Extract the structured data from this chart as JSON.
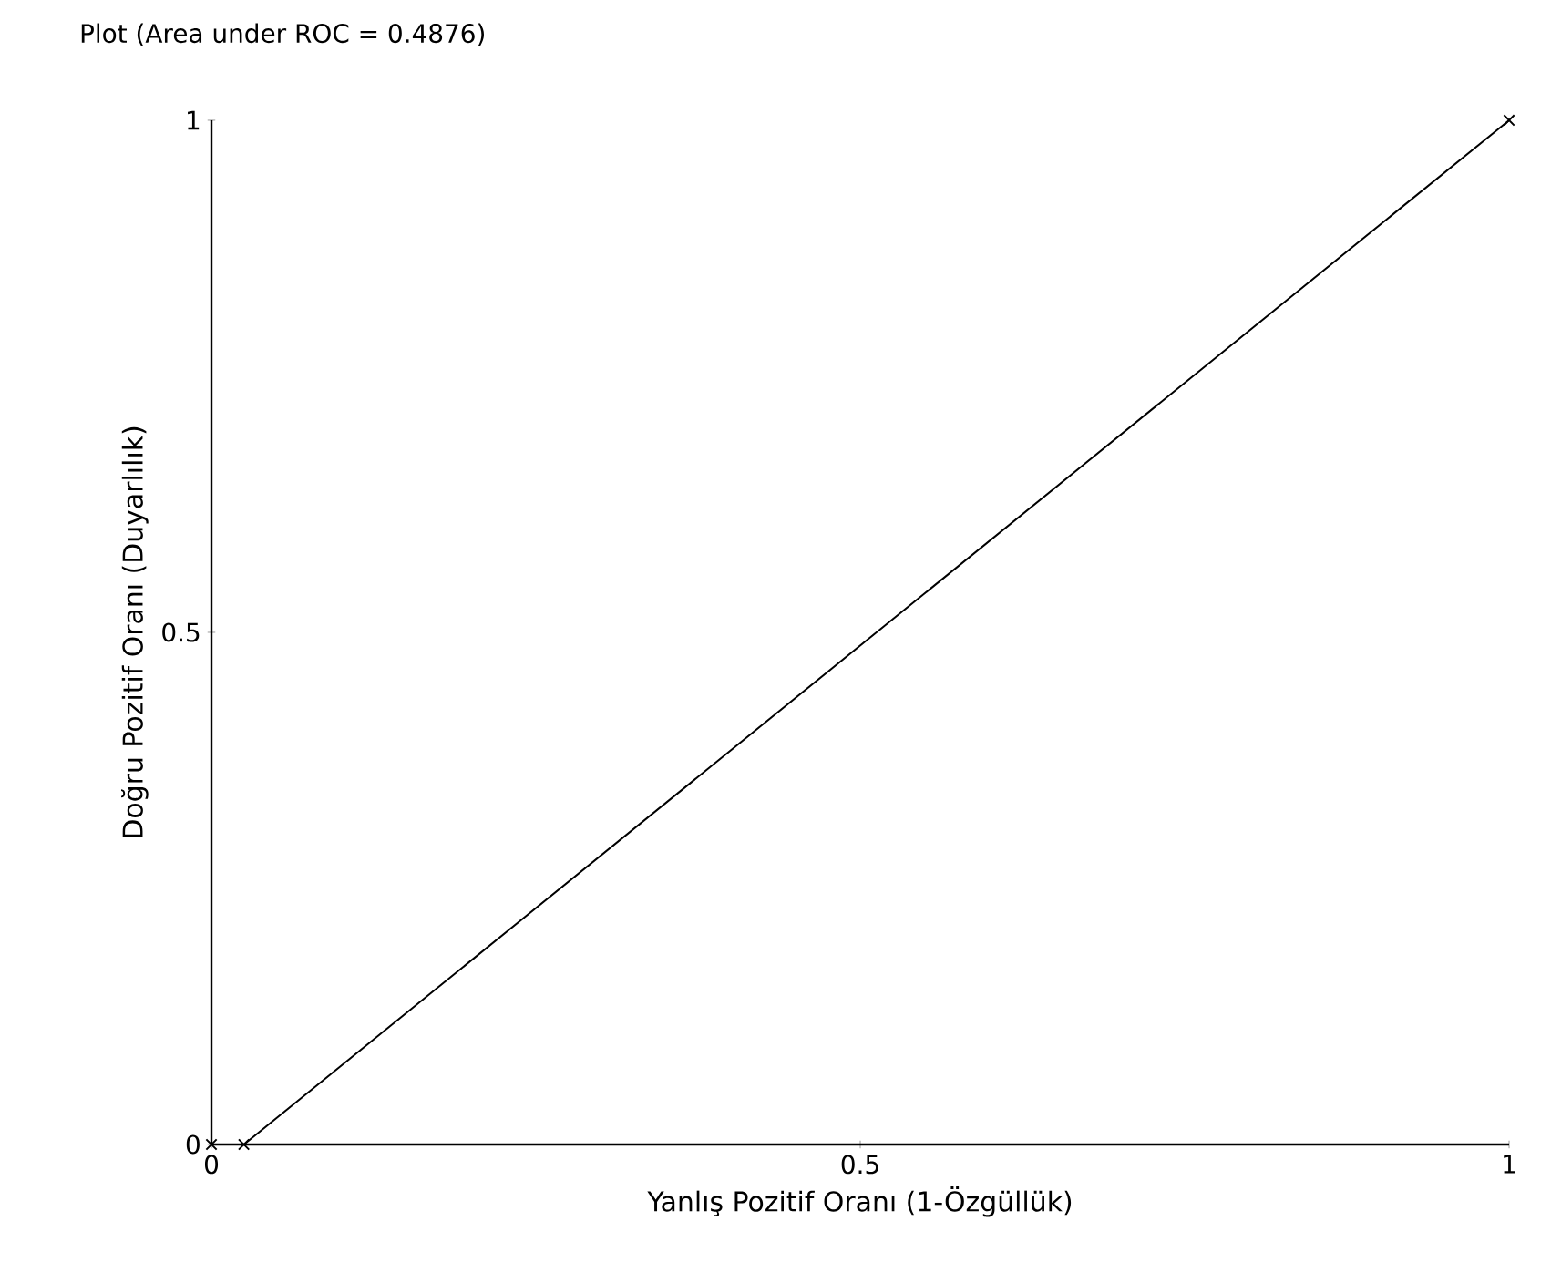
{
  "chart_data": {
    "type": "line",
    "title": "Plot (Area under ROC = 0.4876)",
    "xlabel": "Yanlış Pozitif Oranı (1-Özgüllük)",
    "ylabel": "Doğru Pozitif Oranı (Duyarlılık)",
    "x": [
      0,
      0.025,
      1
    ],
    "series": [
      {
        "color": "#000000",
        "values": [
          0,
          0,
          1
        ]
      }
    ],
    "xlim": [
      0,
      1
    ],
    "ylim": [
      0,
      1
    ],
    "xticks": [
      0,
      0.5,
      1
    ],
    "yticks": [
      0,
      0.5,
      1
    ],
    "marker": "cross",
    "line_style": "solid"
  }
}
